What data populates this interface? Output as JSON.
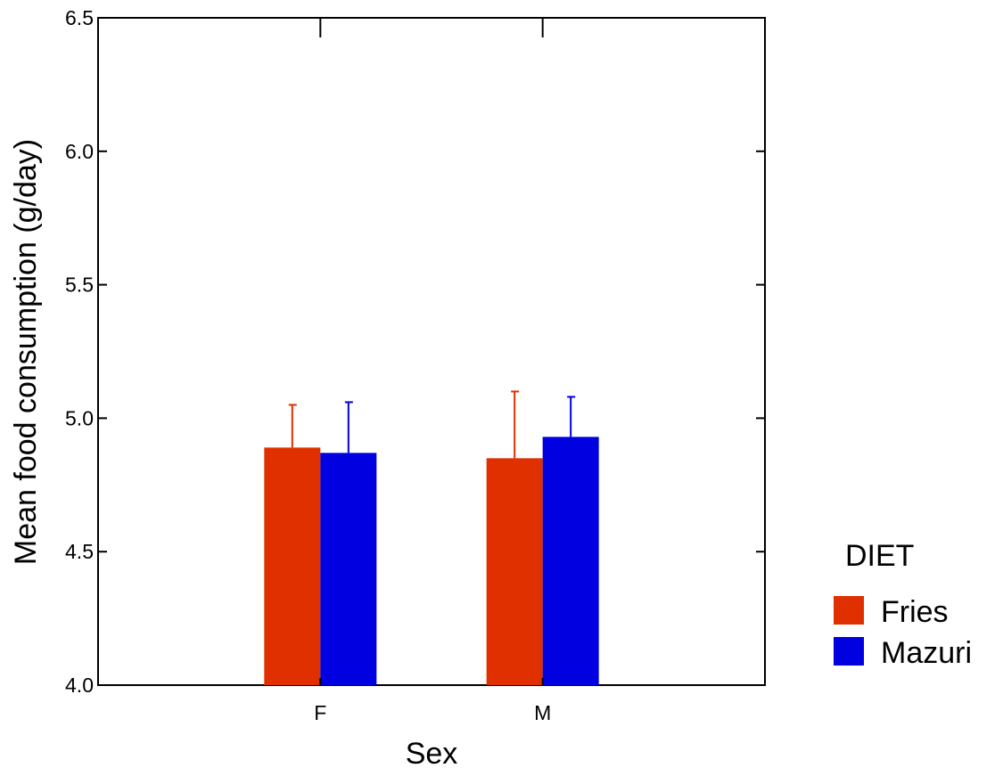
{
  "chart_data": {
    "type": "bar",
    "categories": [
      "F",
      "M"
    ],
    "series": [
      {
        "name": "Fries",
        "color": "#e03000",
        "values": [
          4.89,
          4.85
        ],
        "error_upper": [
          5.05,
          5.1
        ]
      },
      {
        "name": "Mazuri",
        "color": "#0000e0",
        "values": [
          4.87,
          4.93
        ],
        "error_upper": [
          5.06,
          5.08
        ]
      }
    ],
    "title": "",
    "xlabel": "Sex",
    "ylabel": "Mean food consumption (g/day)",
    "ylim": [
      4.0,
      6.5
    ],
    "yticks": [
      "4.0",
      "4.5",
      "5.0",
      "5.5",
      "6.0",
      "6.5"
    ],
    "grid": false,
    "legend": {
      "title": "DIET",
      "position": "right"
    }
  }
}
